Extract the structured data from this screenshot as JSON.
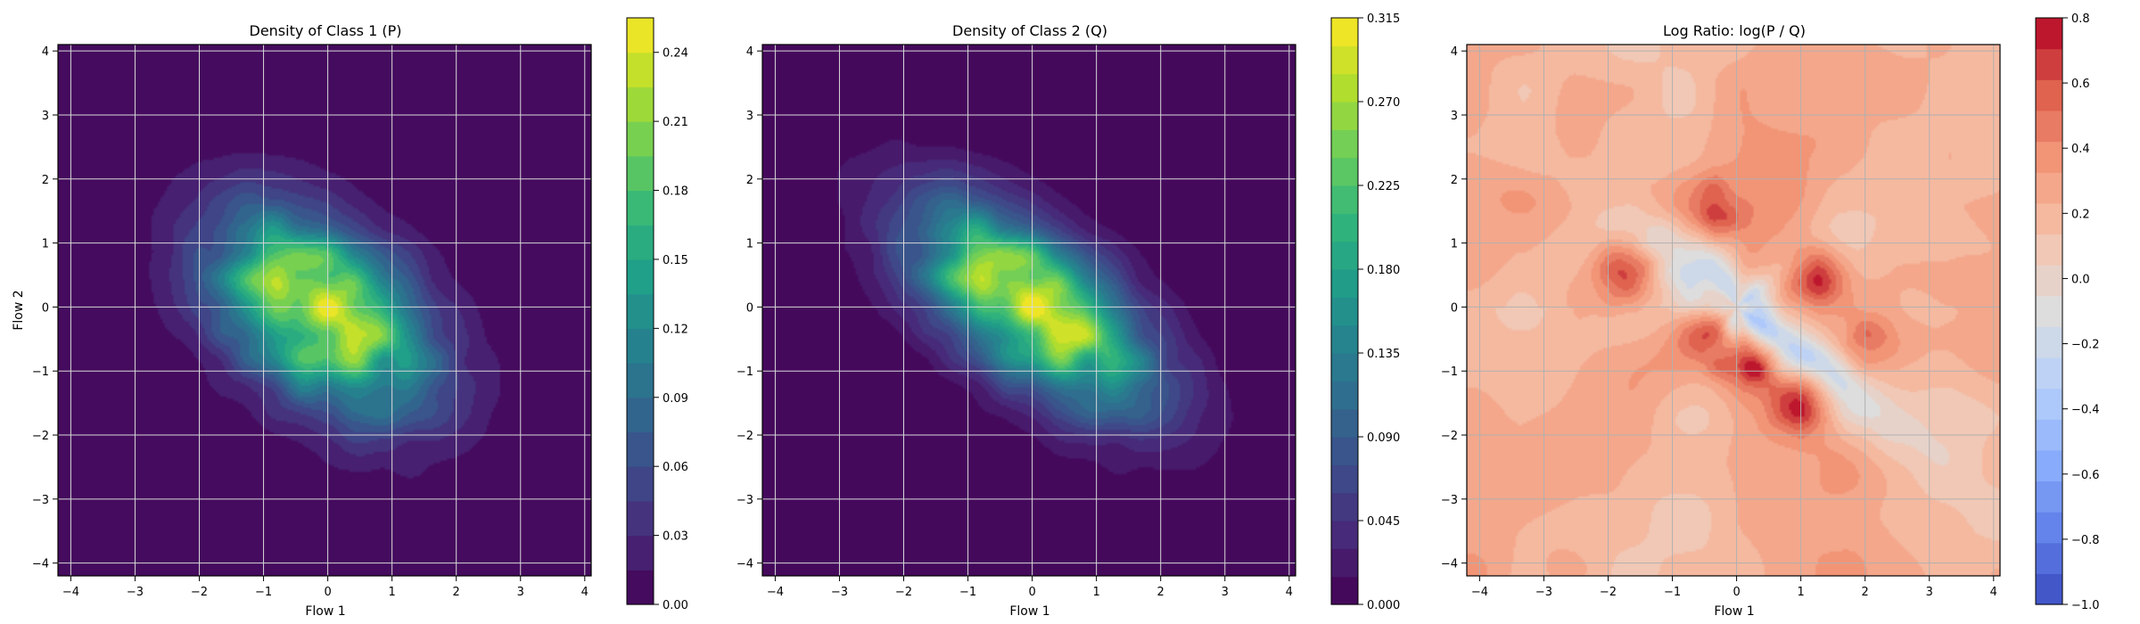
{
  "chart_data": [
    {
      "type": "heatmap",
      "subtype": "filled-contour",
      "title": "Density of Class 1 (P)",
      "xlabel": "Flow 1",
      "ylabel": "Flow 2",
      "xlim": [
        -4.2,
        4.1
      ],
      "ylim": [
        -4.2,
        4.1
      ],
      "xticks": [
        "−4",
        "−3",
        "−2",
        "−1",
        "0",
        "1",
        "2",
        "3",
        "4"
      ],
      "yticks": [
        "−4",
        "−3",
        "−2",
        "−1",
        "0",
        "1",
        "2",
        "3",
        "4"
      ],
      "grid": true,
      "colormap": "viridis",
      "distribution": {
        "center": [
          -0.1,
          -0.1
        ],
        "sigma_major": 1.35,
        "sigma_minor": 0.85,
        "angle_deg": -40,
        "peak": 0.25
      },
      "colorbar": {
        "vmin": 0.0,
        "vmax": 0.255,
        "ticks": [
          0.0,
          0.03,
          0.06,
          0.09,
          0.12,
          0.15,
          0.18,
          0.21,
          0.24
        ],
        "tick_labels": [
          "0.00",
          "0.03",
          "0.06",
          "0.09",
          "0.12",
          "0.15",
          "0.18",
          "0.21",
          "0.24"
        ],
        "levels": 17
      }
    },
    {
      "type": "heatmap",
      "subtype": "filled-contour",
      "title": "Density of Class 2 (Q)",
      "xlabel": "Flow 1",
      "ylabel": "",
      "xlim": [
        -4.2,
        4.1
      ],
      "ylim": [
        -4.2,
        4.1
      ],
      "xticks": [
        "−4",
        "−3",
        "−2",
        "−1",
        "0",
        "1",
        "2",
        "3",
        "4"
      ],
      "yticks": [
        "−4",
        "−3",
        "−2",
        "−1",
        "0",
        "1",
        "2",
        "3",
        "4"
      ],
      "grid": true,
      "colormap": "viridis",
      "distribution": {
        "center": [
          0.0,
          0.0
        ],
        "sigma_major": 1.5,
        "sigma_minor": 0.72,
        "angle_deg": -38,
        "peak": 0.31
      },
      "colorbar": {
        "vmin": 0.0,
        "vmax": 0.315,
        "ticks": [
          0.0,
          0.045,
          0.09,
          0.135,
          0.18,
          0.225,
          0.27,
          0.315
        ],
        "tick_labels": [
          "0.000",
          "0.045",
          "0.090",
          "0.135",
          "0.180",
          "0.225",
          "0.270",
          "0.315"
        ],
        "levels": 21
      }
    },
    {
      "type": "heatmap",
      "subtype": "filled-contour",
      "title": "Log Ratio: log(P / Q)",
      "xlabel": "Flow 1",
      "ylabel": "",
      "xlim": [
        -4.2,
        4.1
      ],
      "ylim": [
        -4.2,
        4.1
      ],
      "xticks": [
        "−4",
        "−3",
        "−2",
        "−1",
        "0",
        "1",
        "2",
        "3",
        "4"
      ],
      "yticks": [
        "−4",
        "−3",
        "−2",
        "−1",
        "0",
        "1",
        "2",
        "3",
        "4"
      ],
      "grid": true,
      "colormap": "coolwarm",
      "features": {
        "base": 0.22,
        "diagonal_band": {
          "value": -0.55,
          "angle_deg": -38,
          "width": 0.35,
          "length": 1.9
        },
        "hotspots": [
          [
            -1.75,
            0.5,
            0.55
          ],
          [
            -0.4,
            1.55,
            0.5
          ],
          [
            1.2,
            0.5,
            0.45
          ],
          [
            0.15,
            -0.8,
            0.55
          ],
          [
            1.05,
            -1.5,
            0.55
          ],
          [
            -0.5,
            -0.4,
            0.35
          ],
          [
            2.0,
            -0.6,
            0.3
          ]
        ]
      },
      "colorbar": {
        "vmin": -1.0,
        "vmax": 0.8,
        "ticks": [
          -1.0,
          -0.8,
          -0.6,
          -0.4,
          -0.2,
          0.0,
          0.2,
          0.4,
          0.6,
          0.8
        ],
        "tick_labels": [
          "−1.0",
          "−0.8",
          "−0.6",
          "−0.4",
          "−0.2",
          "0.0",
          "0.2",
          "0.4",
          "0.6",
          "0.8"
        ],
        "levels": 19
      }
    }
  ]
}
